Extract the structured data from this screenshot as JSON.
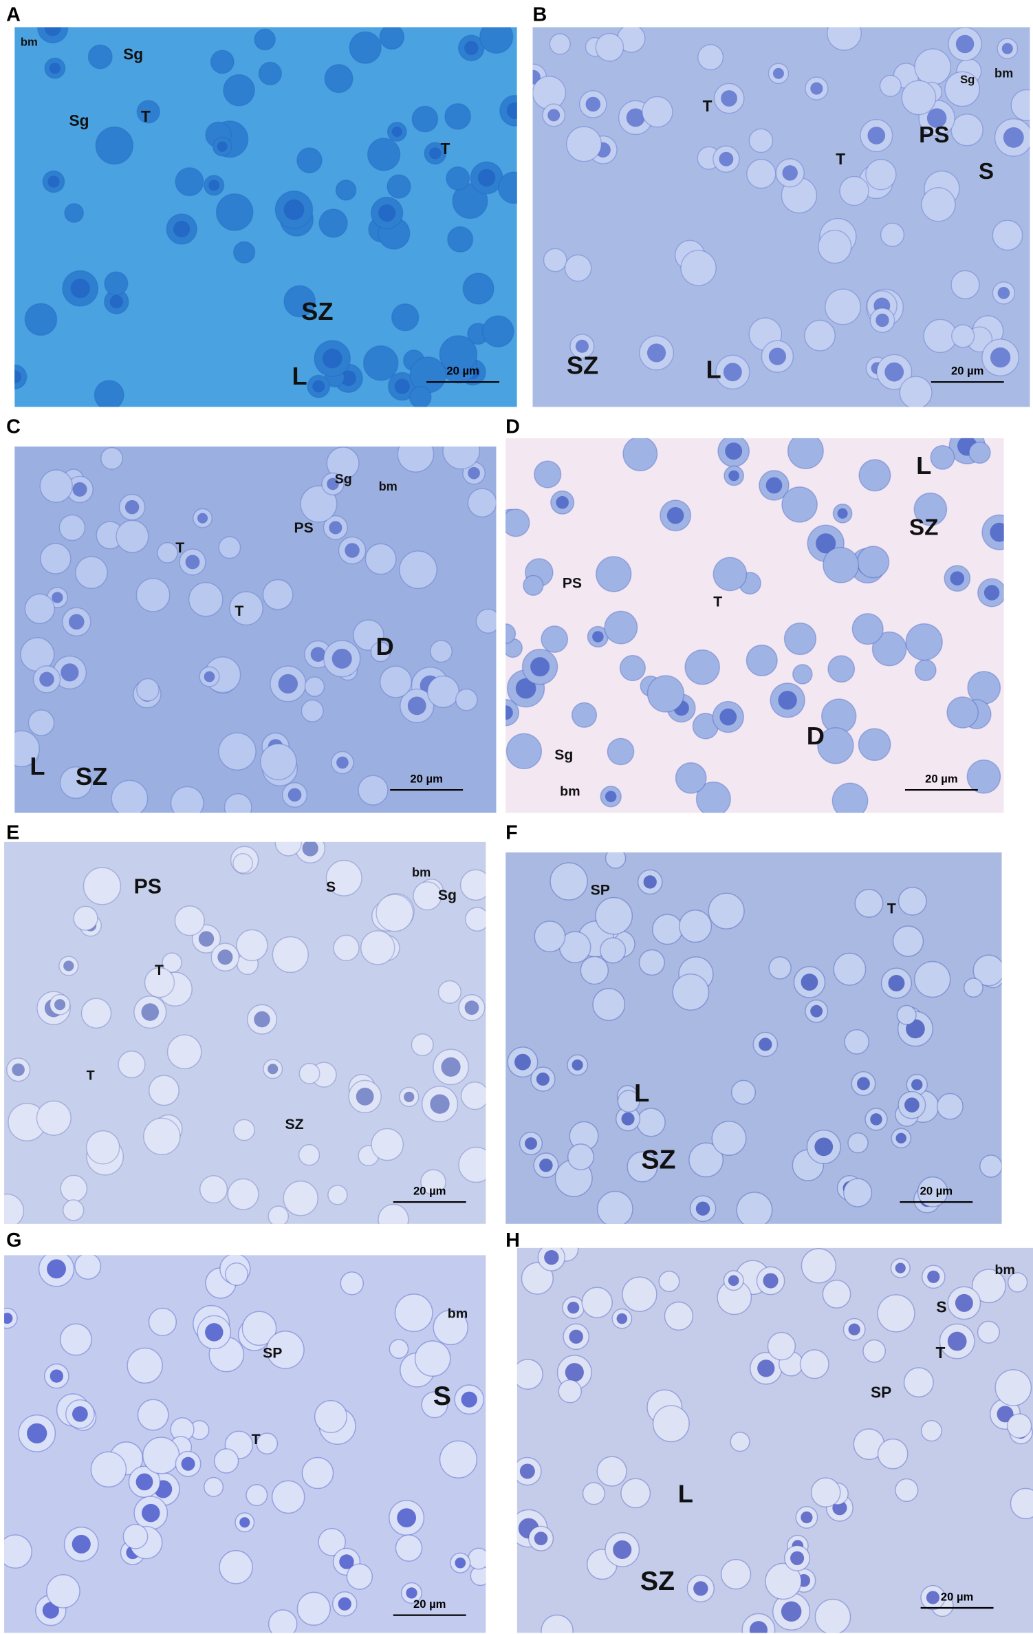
{
  "panels": [
    {
      "label": "A",
      "annotations": [
        "bm",
        "Sg",
        "Sg",
        "T",
        "T",
        "SZ",
        "L"
      ],
      "scale_bar": "20 µm"
    },
    {
      "label": "B",
      "annotations": [
        "Sg",
        "bm",
        "T",
        "T",
        "PS",
        "S",
        "SZ",
        "L"
      ],
      "scale_bar": "20 µm"
    },
    {
      "label": "C",
      "annotations": [
        "Sg",
        "bm",
        "PS",
        "T",
        "T",
        "D",
        "L",
        "SZ"
      ],
      "scale_bar": "20 µm"
    },
    {
      "label": "D",
      "annotations": [
        "L",
        "SZ",
        "T",
        "PS",
        "D",
        "Sg",
        "bm"
      ],
      "scale_bar": "20 µm"
    },
    {
      "label": "E",
      "annotations": [
        "PS",
        "S",
        "bm",
        "Sg",
        "T",
        "T",
        "SZ"
      ],
      "scale_bar": "20 µm"
    },
    {
      "label": "F",
      "annotations": [
        "SP",
        "T",
        "L",
        "SZ"
      ],
      "scale_bar": "20 µm"
    },
    {
      "label": "G",
      "annotations": [
        "bm",
        "SP",
        "S",
        "T"
      ],
      "scale_bar": "20 µm"
    },
    {
      "label": "H",
      "annotations": [
        "bm",
        "S",
        "T",
        "SP",
        "L",
        "SZ"
      ],
      "scale_bar": "20 µm"
    }
  ]
}
